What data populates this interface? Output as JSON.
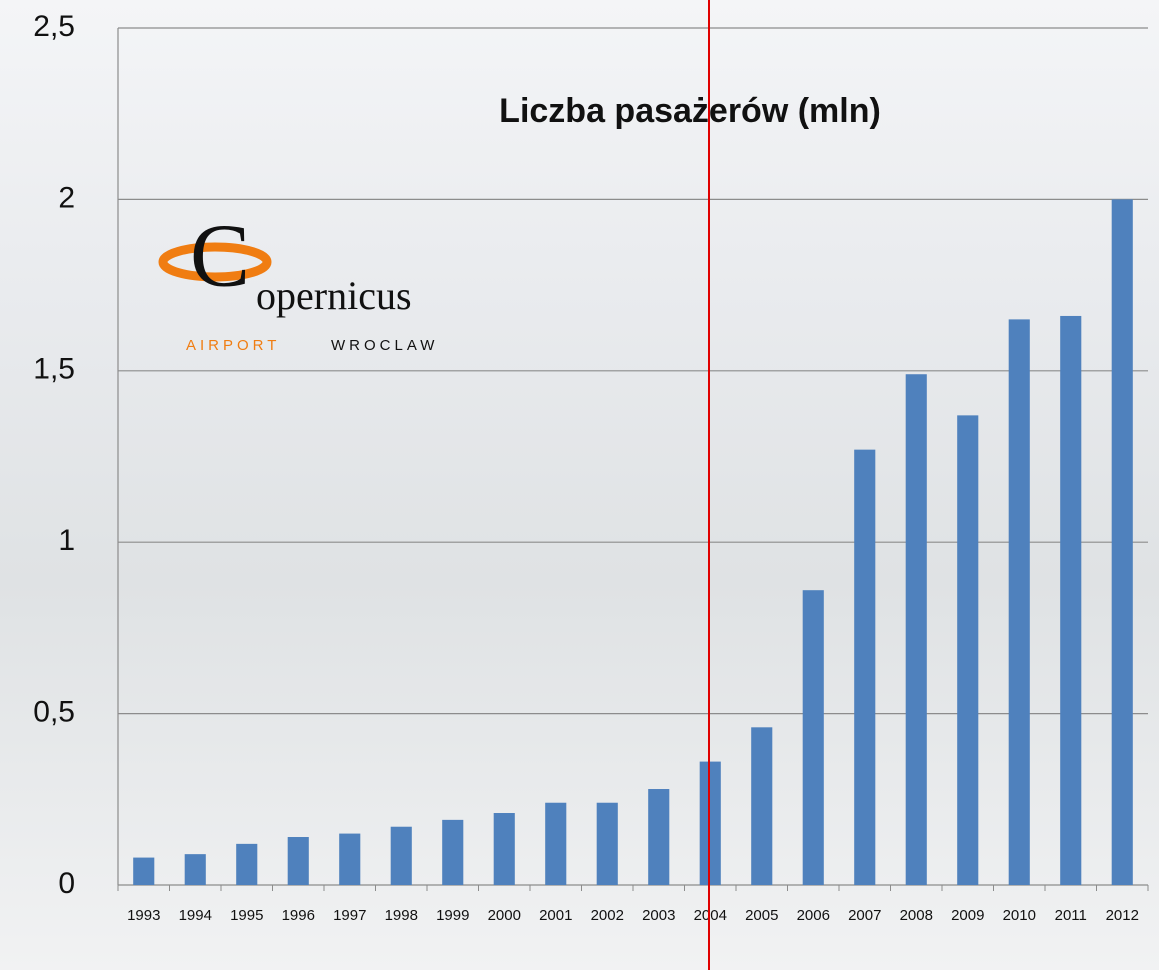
{
  "chart_data": {
    "type": "bar",
    "title": "Liczba pasażerów (mln)",
    "categories": [
      "1993",
      "1994",
      "1995",
      "1996",
      "1997",
      "1998",
      "1999",
      "2000",
      "2001",
      "2002",
      "2003",
      "2004",
      "2005",
      "2006",
      "2007",
      "2008",
      "2009",
      "2010",
      "2011",
      "2012"
    ],
    "values": [
      0.08,
      0.09,
      0.12,
      0.14,
      0.15,
      0.17,
      0.19,
      0.21,
      0.24,
      0.24,
      0.28,
      0.36,
      0.46,
      0.86,
      1.27,
      1.49,
      1.37,
      1.65,
      1.66,
      2.0
    ],
    "color": "#4f81bd",
    "ylim": [
      0,
      2.5
    ],
    "yticks": [
      0,
      {
        "value": 0.5,
        "label": "0,5"
      },
      1,
      {
        "value": 1.5,
        "label": "1,5"
      },
      2,
      {
        "value": 2.5,
        "label": "2,5"
      }
    ],
    "grid": true
  },
  "logo": {
    "initial": "C",
    "name": "opernicus",
    "left": "AIRPORT",
    "right": "WROCLAW"
  }
}
